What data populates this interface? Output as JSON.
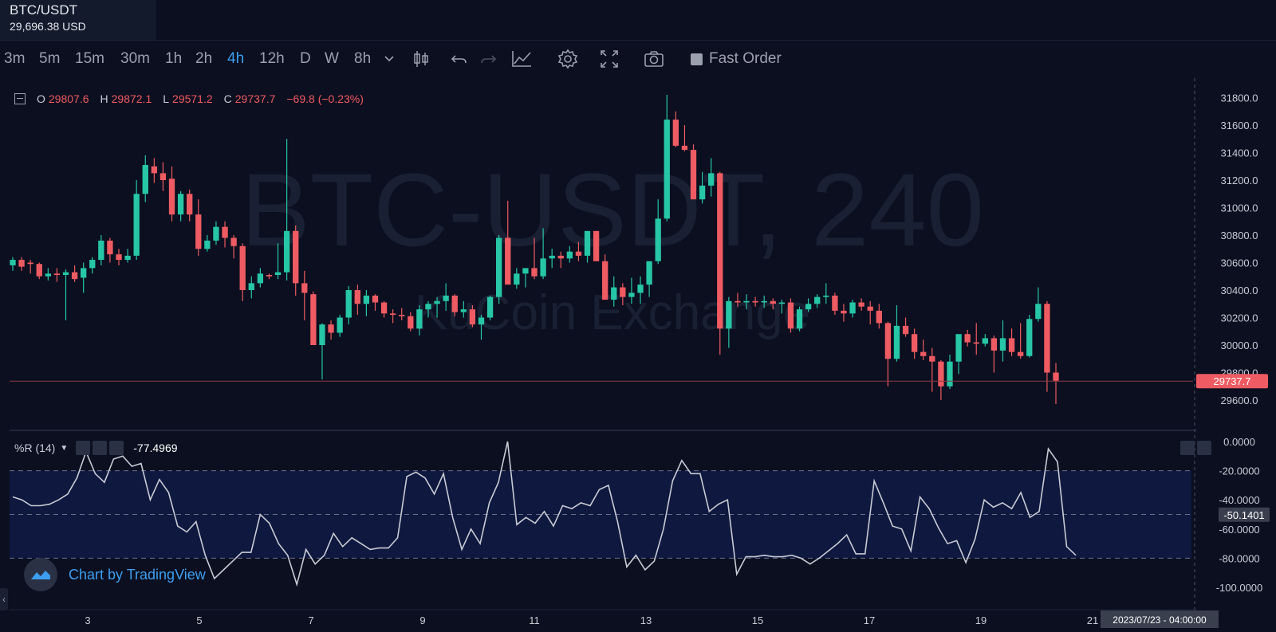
{
  "header": {
    "symbol": "BTC/USDT",
    "price": "29,696.38 USD"
  },
  "toolbar": {
    "timeframes": [
      "3m",
      "5m",
      "15m",
      "30m",
      "1h",
      "2h",
      "4h",
      "12h",
      "D",
      "W",
      "8h"
    ],
    "active_timeframe": "4h",
    "fast_order_label": "Fast Order"
  },
  "legend": {
    "o_label": "O",
    "o_value": "29807.6",
    "h_label": "H",
    "h_value": "29872.1",
    "l_label": "L",
    "l_value": "29571.2",
    "c_label": "C",
    "c_value": "29737.7",
    "change": "−69.8 (−0.23%)"
  },
  "watermark": {
    "title": "BTC-USDT, 240",
    "subtitle": "KuCoin Exchange"
  },
  "indicator": {
    "name": "%R (14)",
    "value": "-77.4969",
    "current_label": "-50.1401"
  },
  "attribution": "Chart by TradingView",
  "time_badge": "2023/07/23 - 04:00:00",
  "last_price_label": "29737.7",
  "colors": {
    "up": "#26c6a6",
    "down": "#ef5b62",
    "bg": "#0b0f1f",
    "line": "#c8cbd4",
    "accent": "#3d9ef0"
  },
  "chart_data": [
    {
      "type": "candlestick",
      "ylim": [
        29500,
        31900
      ],
      "ytick_labels": [
        "31800.0",
        "31600.0",
        "31400.0",
        "31200.0",
        "31000.0",
        "30800.0",
        "30600.0",
        "30400.0",
        "30200.0",
        "30000.0",
        "29800.0",
        "29600.0"
      ],
      "xtick_labels": [
        "3",
        "5",
        "7",
        "9",
        "11",
        "13",
        "15",
        "17",
        "19",
        "21"
      ],
      "current_price": 29737.7,
      "candles_ohlc": [
        [
          30580,
          30640,
          30540,
          30620
        ],
        [
          30620,
          30640,
          30540,
          30570
        ],
        [
          30600,
          30620,
          30520,
          30590
        ],
        [
          30590,
          30600,
          30480,
          30500
        ],
        [
          30500,
          30560,
          30470,
          30520
        ],
        [
          30520,
          30560,
          30460,
          30510
        ],
        [
          30510,
          30550,
          30180,
          30530
        ],
        [
          30530,
          30580,
          30460,
          30480
        ],
        [
          30490,
          30600,
          30380,
          30560
        ],
        [
          30560,
          30640,
          30520,
          30620
        ],
        [
          30620,
          30800,
          30580,
          30760
        ],
        [
          30760,
          30780,
          30600,
          30660
        ],
        [
          30660,
          30700,
          30580,
          30620
        ],
        [
          30620,
          30700,
          30600,
          30650
        ],
        [
          30650,
          31200,
          30620,
          31100
        ],
        [
          31100,
          31380,
          31040,
          31310
        ],
        [
          31300,
          31360,
          31180,
          31250
        ],
        [
          31250,
          31330,
          31120,
          31200
        ],
        [
          31210,
          31300,
          30900,
          30950
        ],
        [
          30950,
          31120,
          30900,
          31100
        ],
        [
          31100,
          31130,
          30900,
          30950
        ],
        [
          30950,
          31060,
          30650,
          30700
        ],
        [
          30700,
          30800,
          30680,
          30760
        ],
        [
          30760,
          30900,
          30730,
          30860
        ],
        [
          30860,
          30900,
          30710,
          30780
        ],
        [
          30780,
          30800,
          30630,
          30720
        ],
        [
          30720,
          30740,
          30320,
          30400
        ],
        [
          30400,
          30500,
          30340,
          30450
        ],
        [
          30450,
          30560,
          30420,
          30520
        ],
        [
          30510,
          30520,
          30480,
          30500
        ],
        [
          30510,
          30740,
          30480,
          30530
        ],
        [
          30530,
          31500,
          30470,
          30830
        ],
        [
          30830,
          30870,
          30360,
          30450
        ],
        [
          30450,
          30540,
          30180,
          30380
        ],
        [
          30370,
          30390,
          30080,
          30000
        ],
        [
          30000,
          30160,
          29750,
          30150
        ],
        [
          30150,
          30180,
          30040,
          30090
        ],
        [
          30090,
          30220,
          30060,
          30200
        ],
        [
          30200,
          30430,
          30150,
          30400
        ],
        [
          30400,
          30440,
          30220,
          30300
        ],
        [
          30300,
          30400,
          30210,
          30360
        ],
        [
          30360,
          30370,
          30250,
          30310
        ],
        [
          30310,
          30320,
          30200,
          30230
        ],
        [
          30230,
          30260,
          30160,
          30220
        ],
        [
          30220,
          30270,
          30180,
          30210
        ],
        [
          30210,
          30240,
          30100,
          30120
        ],
        [
          30120,
          30290,
          30070,
          30260
        ],
        [
          30260,
          30320,
          30200,
          30300
        ],
        [
          30300,
          30350,
          30200,
          30320
        ],
        [
          30320,
          30450,
          30250,
          30360
        ],
        [
          30360,
          30370,
          30210,
          30240
        ],
        [
          30240,
          30320,
          30200,
          30260
        ],
        [
          30260,
          30290,
          30130,
          30150
        ],
        [
          30150,
          30220,
          30040,
          30200
        ],
        [
          30200,
          30360,
          30180,
          30350
        ],
        [
          30350,
          30800,
          30300,
          30780
        ],
        [
          30780,
          31050,
          30480,
          30440
        ],
        [
          30440,
          30560,
          30410,
          30520
        ],
        [
          30520,
          30560,
          30420,
          30560
        ],
        [
          30560,
          30780,
          30480,
          30500
        ],
        [
          30500,
          30850,
          30480,
          30630
        ],
        [
          30630,
          30700,
          30560,
          30650
        ],
        [
          30650,
          30680,
          30560,
          30630
        ],
        [
          30630,
          30720,
          30600,
          30680
        ],
        [
          30680,
          30750,
          30610,
          30650
        ],
        [
          30650,
          30830,
          30600,
          30830
        ],
        [
          30830,
          30830,
          30630,
          30610
        ],
        [
          30610,
          30660,
          30380,
          30330
        ],
        [
          30330,
          30500,
          30280,
          30420
        ],
        [
          30420,
          30450,
          30290,
          30350
        ],
        [
          30350,
          30490,
          30300,
          30380
        ],
        [
          30380,
          30500,
          30300,
          30440
        ],
        [
          30440,
          30520,
          30350,
          30610
        ],
        [
          30610,
          31060,
          30590,
          30920
        ],
        [
          30920,
          31820,
          30900,
          31640
        ],
        [
          31640,
          31700,
          31440,
          31450
        ],
        [
          31450,
          31600,
          31410,
          31420
        ],
        [
          31420,
          31460,
          31060,
          31060
        ],
        [
          31060,
          31260,
          31030,
          31160
        ],
        [
          31160,
          31360,
          31080,
          31250
        ],
        [
          31250,
          31260,
          29930,
          30120
        ],
        [
          30120,
          30350,
          29980,
          30320
        ],
        [
          30320,
          30380,
          30280,
          30310
        ],
        [
          30310,
          30370,
          30260,
          30320
        ],
        [
          30320,
          30350,
          30280,
          30310
        ],
        [
          30310,
          30360,
          30270,
          30320
        ],
        [
          30320,
          30340,
          30260,
          30300
        ],
        [
          30300,
          30330,
          30230,
          30310
        ],
        [
          30310,
          30340,
          30090,
          30120
        ],
        [
          30120,
          30280,
          30100,
          30260
        ],
        [
          30260,
          30340,
          30240,
          30300
        ],
        [
          30300,
          30370,
          30270,
          30350
        ],
        [
          30350,
          30450,
          30300,
          30360
        ],
        [
          30360,
          30380,
          30220,
          30250
        ],
        [
          30250,
          30300,
          30170,
          30230
        ],
        [
          30230,
          30330,
          30200,
          30310
        ],
        [
          30310,
          30340,
          30250,
          30280
        ],
        [
          30280,
          30320,
          30150,
          30250
        ],
        [
          30250,
          30300,
          30120,
          30160
        ],
        [
          30160,
          30170,
          29700,
          29900
        ],
        [
          29900,
          30290,
          29880,
          30140
        ],
        [
          30140,
          30200,
          30060,
          30080
        ],
        [
          30080,
          30120,
          29900,
          29950
        ],
        [
          29950,
          30040,
          29890,
          29920
        ],
        [
          29920,
          29980,
          29660,
          29880
        ],
        [
          29880,
          29890,
          29600,
          29700
        ],
        [
          29700,
          29930,
          29680,
          29880
        ],
        [
          29880,
          30070,
          29790,
          30080
        ],
        [
          30080,
          30110,
          29990,
          30020
        ],
        [
          30020,
          30160,
          29930,
          30010
        ],
        [
          30010,
          30080,
          29990,
          30050
        ],
        [
          30050,
          30070,
          29800,
          29960
        ],
        [
          29960,
          30180,
          29880,
          30050
        ],
        [
          30050,
          30120,
          29920,
          29950
        ],
        [
          29950,
          30160,
          29900,
          29920
        ],
        [
          29920,
          30220,
          29910,
          30190
        ],
        [
          30190,
          30420,
          30170,
          30300
        ],
        [
          30300,
          30320,
          29660,
          29800
        ],
        [
          29800,
          29870,
          29570,
          29740
        ]
      ]
    },
    {
      "type": "line",
      "name": "%R (14)",
      "ylim": [
        -100,
        0
      ],
      "ytick_labels": [
        "0.0000",
        "-20.0000",
        "-40.0000",
        "-60.0000",
        "-80.0000",
        "-100.0000"
      ],
      "bands": [
        -20,
        -50,
        -80
      ],
      "values": [
        -38,
        -40,
        -44,
        -44,
        -43,
        -40,
        -36,
        -25,
        -7,
        -22,
        -28,
        -12,
        -10,
        -17,
        -15,
        -40,
        -26,
        -35,
        -58,
        -62,
        -55,
        -78,
        -94,
        -88,
        -82,
        -76,
        -76,
        -50,
        -56,
        -70,
        -78,
        -98,
        -74,
        -84,
        -78,
        -63,
        -72,
        -66,
        -70,
        -74,
        -73,
        -73,
        -66,
        -24,
        -21,
        -25,
        -36,
        -22,
        -52,
        -74,
        -60,
        -70,
        -42,
        -28,
        0,
        -57,
        -52,
        -56,
        -48,
        -58,
        -44,
        -46,
        -42,
        -44,
        -33,
        -30,
        -55,
        -86,
        -78,
        -88,
        -82,
        -60,
        -27,
        -13,
        -22,
        -22,
        -48,
        -43,
        -40,
        -91,
        -79,
        -79,
        -78,
        -79,
        -79,
        -78,
        -80,
        -84,
        -80,
        -75,
        -70,
        -64,
        -77,
        -77,
        -27,
        -42,
        -58,
        -60,
        -75,
        -38,
        -46,
        -59,
        -70,
        -68,
        -83,
        -67,
        -40,
        -45,
        -42,
        -46,
        -35,
        -52,
        -48,
        -5,
        -14,
        -72,
        -78
      ]
    }
  ]
}
